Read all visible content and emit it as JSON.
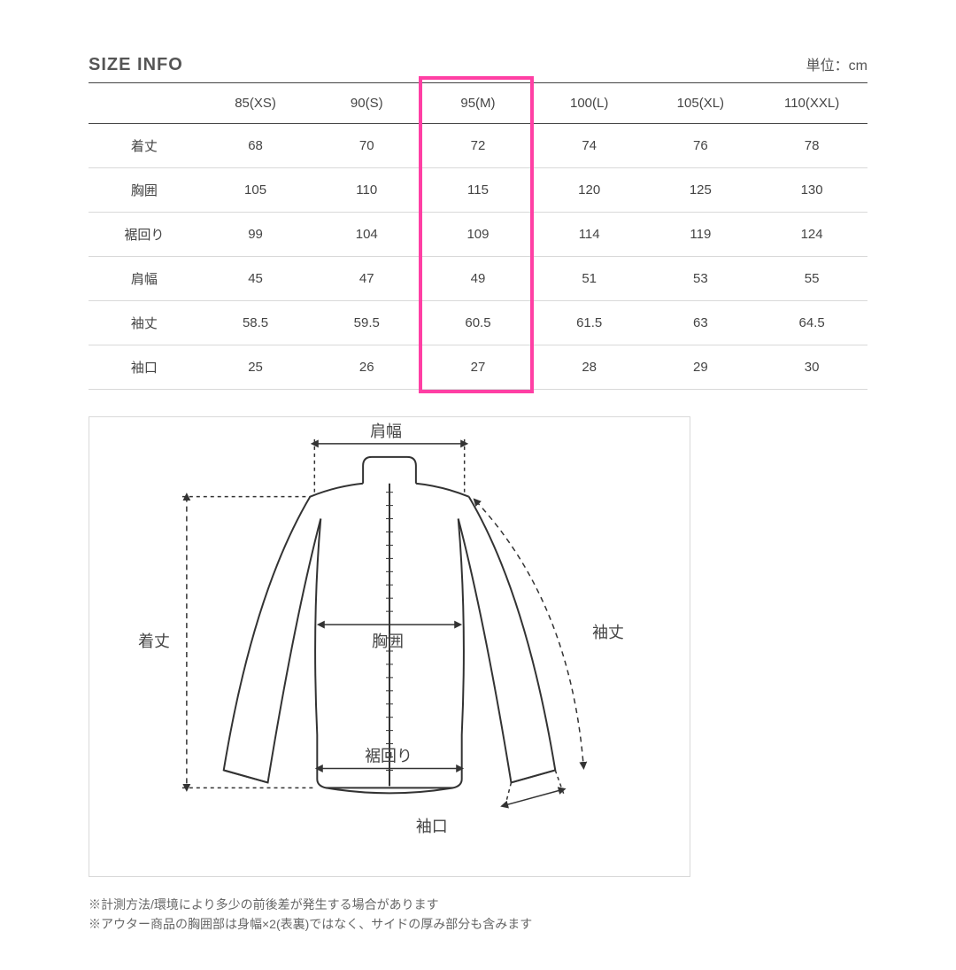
{
  "title": "SIZE INFO",
  "unit_label": "単位：cm",
  "table": {
    "columns": [
      "",
      "85(XS)",
      "90(S)",
      "95(M)",
      "100(L)",
      "105(XL)",
      "110(XXL)"
    ],
    "rows": [
      {
        "label": "着丈",
        "values": [
          "68",
          "70",
          "72",
          "74",
          "76",
          "78"
        ]
      },
      {
        "label": "胸囲",
        "values": [
          "105",
          "110",
          "115",
          "120",
          "125",
          "130"
        ]
      },
      {
        "label": "裾回り",
        "values": [
          "99",
          "104",
          "109",
          "114",
          "119",
          "124"
        ]
      },
      {
        "label": "肩幅",
        "values": [
          "45",
          "47",
          "49",
          "51",
          "53",
          "55"
        ]
      },
      {
        "label": "袖丈",
        "values": [
          "58.5",
          "59.5",
          "60.5",
          "61.5",
          "63",
          "64.5"
        ]
      },
      {
        "label": "袖口",
        "values": [
          "25",
          "26",
          "27",
          "28",
          "29",
          "30"
        ]
      }
    ],
    "highlight_column_index": 3,
    "highlight_color": "#ff3fa4",
    "border_color_head": "#444444",
    "border_color_body": "#d9d9d9",
    "text_color": "#444444"
  },
  "diagram": {
    "labels": {
      "shoulder": "肩幅",
      "length": "着丈",
      "chest": "胸囲",
      "hem": "裾回り",
      "sleeve": "袖丈",
      "cuff": "袖口"
    },
    "stroke_color": "#333333",
    "dash_color": "#333333"
  },
  "notes": [
    "※計測方法/環境により多少の前後差が発生する場合があります",
    "※アウター商品の胸囲部は身幅×2(表裏)ではなく、サイドの厚み部分も含みます"
  ],
  "colors": {
    "background": "#ffffff"
  }
}
